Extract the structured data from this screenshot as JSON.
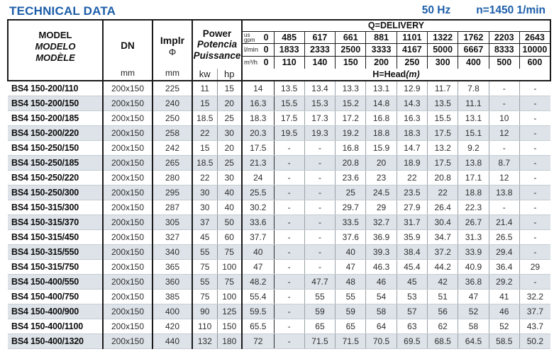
{
  "header": {
    "title": "TECHNICAL DATA",
    "frequency": "50 Hz",
    "speed": "n=1450 1/min"
  },
  "table": {
    "model_col": {
      "line1": "MODEL",
      "line2": "MODELO",
      "line3": "MODÈLE"
    },
    "dn_col": {
      "label": "DN",
      "unit": "mm"
    },
    "implr_col": {
      "label": "Implr",
      "symbol": "Φ",
      "unit": "mm"
    },
    "power_col": {
      "line1": "Power",
      "line2": "Potencia",
      "line3": "Puissance",
      "kw": "kw",
      "hp": "hp"
    },
    "delivery_title": "Q=DELIVERY",
    "head_title": "H=Head",
    "head_unit": "(m)",
    "q_rows": [
      {
        "unit_sup": "us",
        "unit": "gpm",
        "zero": "0",
        "values": [
          "485",
          "617",
          "661",
          "881",
          "1101",
          "1322",
          "1762",
          "2203",
          "2643"
        ]
      },
      {
        "unit_sup": "",
        "unit": "l/min",
        "zero": "0",
        "values": [
          "1833",
          "2333",
          "2500",
          "3333",
          "4167",
          "5000",
          "6667",
          "8333",
          "10000"
        ]
      },
      {
        "unit_sup": "",
        "unit": "m³/h",
        "zero": "0",
        "values": [
          "110",
          "140",
          "150",
          "200",
          "250",
          "300",
          "400",
          "500",
          "600"
        ]
      }
    ],
    "rows": [
      {
        "model": "BS4 150-200/110",
        "dn": "200x150",
        "implr": "225",
        "kw": "11",
        "hp": "15",
        "head": [
          "14",
          "13.5",
          "13.4",
          "13.3",
          "13.1",
          "12.9",
          "11.7",
          "7.8",
          "-",
          "-"
        ]
      },
      {
        "model": "BS4 150-200/150",
        "dn": "200x150",
        "implr": "240",
        "kw": "15",
        "hp": "20",
        "head": [
          "16.3",
          "15.5",
          "15.3",
          "15.2",
          "14.8",
          "14.3",
          "13.5",
          "11.1",
          "-",
          "-"
        ]
      },
      {
        "model": "BS4 150-200/185",
        "dn": "200x150",
        "implr": "250",
        "kw": "18.5",
        "hp": "25",
        "head": [
          "18.3",
          "17.5",
          "17.3",
          "17.2",
          "16.8",
          "16.3",
          "15.5",
          "13.1",
          "10",
          "-"
        ]
      },
      {
        "model": "BS4 150-200/220",
        "dn": "200x150",
        "implr": "258",
        "kw": "22",
        "hp": "30",
        "head": [
          "20.3",
          "19.5",
          "19.3",
          "19.2",
          "18.8",
          "18.3",
          "17.5",
          "15.1",
          "12",
          "-"
        ]
      },
      {
        "model": "BS4 150-250/150",
        "dn": "200x150",
        "implr": "242",
        "kw": "15",
        "hp": "20",
        "head": [
          "17.5",
          "-",
          "-",
          "16.8",
          "15.9",
          "14.7",
          "13.2",
          "9.2",
          "-",
          "-"
        ]
      },
      {
        "model": "BS4 150-250/185",
        "dn": "200x150",
        "implr": "265",
        "kw": "18.5",
        "hp": "25",
        "head": [
          "21.3",
          "-",
          "-",
          "20.8",
          "20",
          "18.9",
          "17.5",
          "13.8",
          "8.7",
          "-"
        ]
      },
      {
        "model": "BS4 150-250/220",
        "dn": "200x150",
        "implr": "280",
        "kw": "22",
        "hp": "30",
        "head": [
          "24",
          "-",
          "-",
          "23.6",
          "23",
          "22",
          "20.8",
          "17.1",
          "12",
          "-"
        ]
      },
      {
        "model": "BS4 150-250/300",
        "dn": "200x150",
        "implr": "295",
        "kw": "30",
        "hp": "40",
        "head": [
          "25.5",
          "-",
          "-",
          "25",
          "24.5",
          "23.5",
          "22",
          "18.8",
          "13.8",
          "-"
        ]
      },
      {
        "model": "BS4 150-315/300",
        "dn": "200x150",
        "implr": "287",
        "kw": "30",
        "hp": "40",
        "head": [
          "30.2",
          "-",
          "-",
          "29.7",
          "29",
          "27.9",
          "26.4",
          "22.3",
          "-",
          "-"
        ]
      },
      {
        "model": "BS4 150-315/370",
        "dn": "200x150",
        "implr": "305",
        "kw": "37",
        "hp": "50",
        "head": [
          "33.6",
          "-",
          "-",
          "33.5",
          "32.7",
          "31.7",
          "30.4",
          "26.7",
          "21.4",
          "-"
        ]
      },
      {
        "model": "BS4 150-315/450",
        "dn": "200x150",
        "implr": "327",
        "kw": "45",
        "hp": "60",
        "head": [
          "37.7",
          "-",
          "-",
          "37.6",
          "36.9",
          "35.9",
          "34.7",
          "31.3",
          "26.5",
          "-"
        ]
      },
      {
        "model": "BS4 150-315/550",
        "dn": "200x150",
        "implr": "340",
        "kw": "55",
        "hp": "75",
        "head": [
          "40",
          "-",
          "-",
          "40",
          "39.3",
          "38.4",
          "37.2",
          "33.9",
          "29.4",
          "-"
        ]
      },
      {
        "model": "BS4 150-315/750",
        "dn": "200x150",
        "implr": "365",
        "kw": "75",
        "hp": "100",
        "head": [
          "47",
          "-",
          "-",
          "47",
          "46.3",
          "45.4",
          "44.2",
          "40.9",
          "36.4",
          "29"
        ]
      },
      {
        "model": "BS4 150-400/550",
        "dn": "200x150",
        "implr": "360",
        "kw": "55",
        "hp": "75",
        "head": [
          "48.2",
          "-",
          "47.7",
          "48",
          "46",
          "45",
          "42",
          "36.8",
          "29.2",
          "-"
        ]
      },
      {
        "model": "BS4 150-400/750",
        "dn": "200x150",
        "implr": "385",
        "kw": "75",
        "hp": "100",
        "head": [
          "55.4",
          "-",
          "55",
          "55",
          "54",
          "53",
          "51",
          "47",
          "41",
          "32.2"
        ]
      },
      {
        "model": "BS4 150-400/900",
        "dn": "200x150",
        "implr": "400",
        "kw": "90",
        "hp": "125",
        "head": [
          "59.5",
          "-",
          "59",
          "59",
          "58",
          "57",
          "56",
          "52",
          "46",
          "37.7"
        ]
      },
      {
        "model": "BS4 150-400/1100",
        "dn": "200x150",
        "implr": "420",
        "kw": "110",
        "hp": "150",
        "head": [
          "65.5",
          "-",
          "65",
          "65",
          "64",
          "63",
          "62",
          "58",
          "52",
          "43.7"
        ]
      },
      {
        "model": "BS4 150-400/1320",
        "dn": "200x150",
        "implr": "440",
        "kw": "132",
        "hp": "180",
        "head": [
          "72",
          "-",
          "71.5",
          "71.5",
          "70.5",
          "69.5",
          "68.5",
          "64.5",
          "58.5",
          "50.2"
        ]
      }
    ]
  },
  "colors": {
    "accent_blue": "#1c5ea9",
    "row_shade": "#dde3e9",
    "border_dark": "#1a1a1a"
  }
}
